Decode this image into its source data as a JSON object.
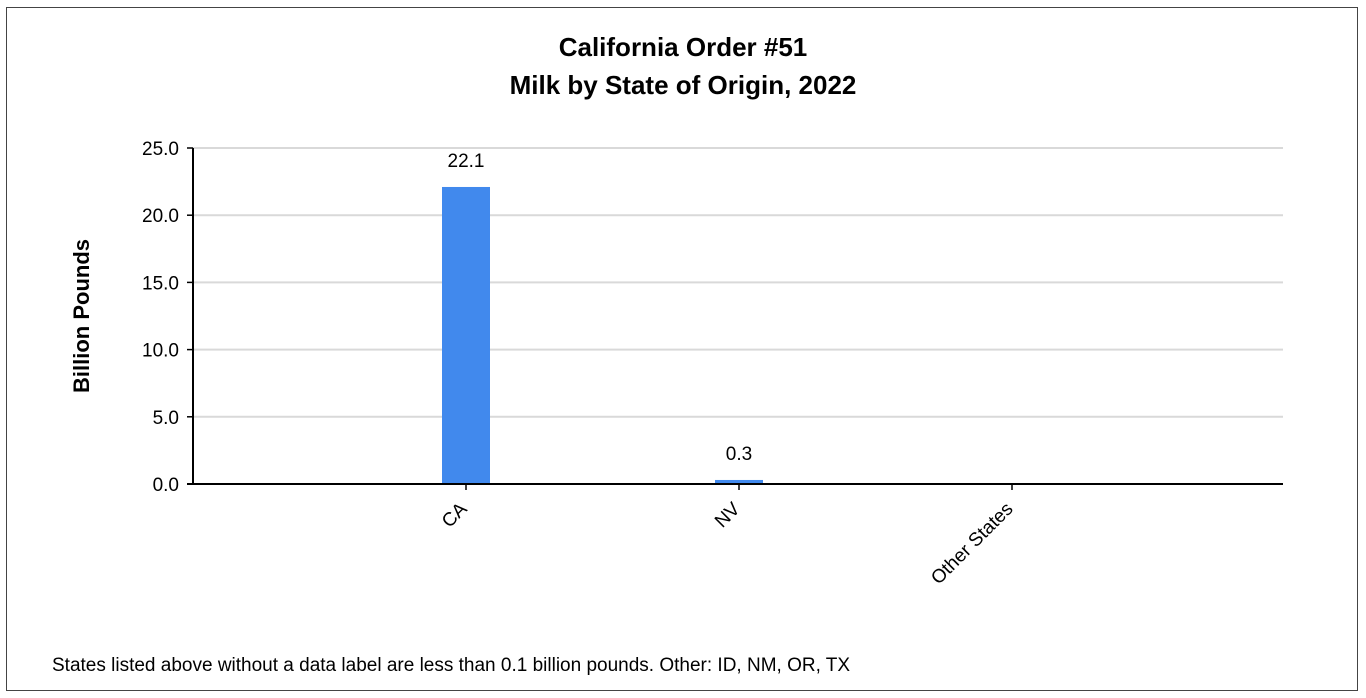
{
  "chart_data": {
    "type": "bar",
    "title": "California Order #51",
    "subtitle": "Milk by State of Origin, 2022",
    "xlabel": "",
    "ylabel": "Billion Pounds",
    "ylim": [
      0,
      25
    ],
    "yticks": [
      "25.0",
      "20.0",
      "15.0",
      "10.0",
      "5.0",
      "0.0"
    ],
    "categories": [
      "CA",
      "NV",
      "Other States"
    ],
    "values": [
      22.1,
      0.3,
      0
    ],
    "data_labels": [
      "22.1",
      "0.3",
      ""
    ],
    "grid": true,
    "bar_color": "#4189ed",
    "footnote": "States listed above without a data label are less than 0.1 billion pounds. Other:  ID, NM, OR, TX"
  }
}
